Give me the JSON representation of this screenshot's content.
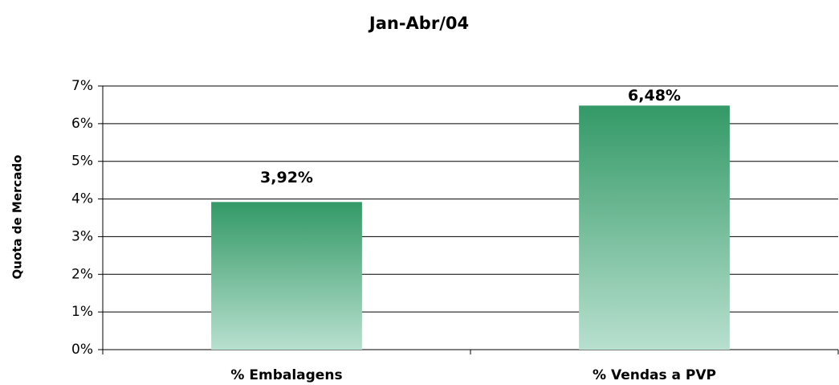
{
  "chart_data": {
    "type": "bar",
    "title": "Jan-Abr/04",
    "ylabel": "Quota de Mercado",
    "categories": [
      "% Embalagens",
      "% Vendas a PVP"
    ],
    "values": [
      3.92,
      6.48
    ],
    "value_labels": [
      "3,92%",
      "6,48%"
    ],
    "color": "#339966",
    "ylim": [
      0,
      7
    ],
    "yticks": [
      {
        "value": 0,
        "label": "0%"
      },
      {
        "value": 1,
        "label": "1%"
      },
      {
        "value": 2,
        "label": "2%"
      },
      {
        "value": 3,
        "label": "3%"
      },
      {
        "value": 4,
        "label": "4%"
      },
      {
        "value": 5,
        "label": "5%"
      },
      {
        "value": 6,
        "label": "6%"
      },
      {
        "value": 7,
        "label": "7%"
      }
    ],
    "grid": true
  }
}
